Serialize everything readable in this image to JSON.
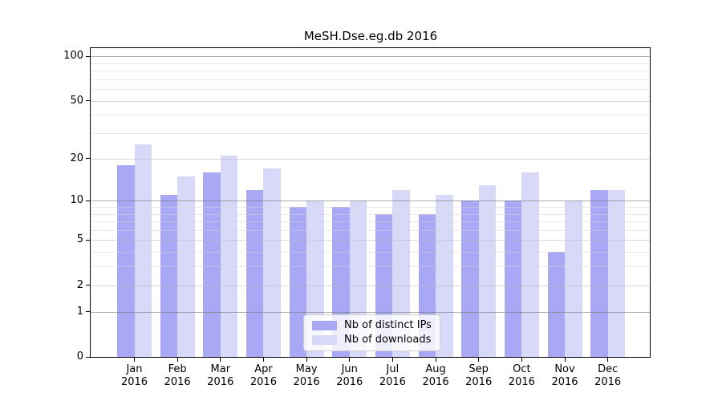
{
  "title": "MeSH.Dse.eg.db 2016",
  "chart_data": {
    "type": "bar",
    "title": "MeSH.Dse.eg.db 2016",
    "categories": [
      "Jan 2016",
      "Feb 2016",
      "Mar 2016",
      "Apr 2016",
      "May 2016",
      "Jun 2016",
      "Jul 2016",
      "Aug 2016",
      "Sep 2016",
      "Oct 2016",
      "Nov 2016",
      "Dec 2016"
    ],
    "month_labels": [
      "Jan",
      "Feb",
      "Mar",
      "Apr",
      "May",
      "Jun",
      "Jul",
      "Aug",
      "Sep",
      "Oct",
      "Nov",
      "Dec"
    ],
    "year_label": "2016",
    "series": [
      {
        "name": "Nb of distinct IPs",
        "color": "#a8a8f5",
        "values": [
          18,
          11,
          16,
          12,
          9,
          9,
          8,
          8,
          10,
          10,
          4,
          12
        ]
      },
      {
        "name": "Nb of downloads",
        "color": "#d8d8f8",
        "values": [
          25,
          15,
          21,
          17,
          10,
          10,
          12,
          11,
          13,
          16,
          10,
          12
        ]
      }
    ],
    "xlabel": "",
    "ylabel": "",
    "yscale": "log1p",
    "ylim": [
      0,
      113.5
    ],
    "y_ticks": [
      0,
      1,
      2,
      5,
      10,
      20,
      50,
      100
    ],
    "y_major_gridlines": [
      1,
      10,
      100
    ],
    "y_minor_gridlines": [
      3,
      4,
      6,
      7,
      8,
      9,
      30,
      40,
      60,
      70,
      80,
      90
    ],
    "grid": true,
    "legend_position": "lower center"
  },
  "colors": {
    "grid_major": "rgba(120,120,120,0.60)",
    "grid_mid": "rgba(185,185,185,0.55)",
    "grid_minor": "rgba(214,214,214,0.50)",
    "spine": "#000000",
    "background": "#ffffff"
  }
}
